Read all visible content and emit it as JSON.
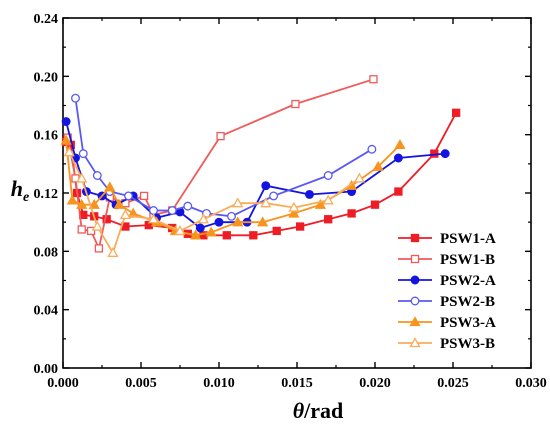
{
  "chart_data": {
    "type": "line",
    "title": "",
    "xlabel": {
      "symbol": "θ",
      "unit": "/rad"
    },
    "ylabel": {
      "symbol": "h",
      "subscript": "e"
    },
    "xlim": [
      0,
      0.03
    ],
    "ylim": [
      0,
      0.24
    ],
    "xticks": [
      "0.000",
      "0.005",
      "0.010",
      "0.015",
      "0.020",
      "0.025",
      "0.030"
    ],
    "yticks": [
      "0.00",
      "0.04",
      "0.08",
      "0.12",
      "0.16",
      "0.20",
      "0.24"
    ],
    "grid": false,
    "legend_position": "lower-right",
    "series": [
      {
        "name": "PSW1-A",
        "color": "#ee1c25",
        "marker": "square",
        "filled": true,
        "points": [
          [
            0.0002,
            0.155
          ],
          [
            0.0005,
            0.153
          ],
          [
            0.0009,
            0.12
          ],
          [
            0.0013,
            0.105
          ],
          [
            0.002,
            0.104
          ],
          [
            0.0028,
            0.102
          ],
          [
            0.004,
            0.097
          ],
          [
            0.0055,
            0.098
          ],
          [
            0.007,
            0.096
          ],
          [
            0.008,
            0.092
          ],
          [
            0.009,
            0.091
          ],
          [
            0.0105,
            0.091
          ],
          [
            0.0122,
            0.091
          ],
          [
            0.0137,
            0.094
          ],
          [
            0.0152,
            0.097
          ],
          [
            0.017,
            0.102
          ],
          [
            0.0185,
            0.106
          ],
          [
            0.02,
            0.112
          ],
          [
            0.0215,
            0.121
          ],
          [
            0.0238,
            0.147
          ],
          [
            0.0252,
            0.175
          ]
        ]
      },
      {
        "name": "PSW1-B",
        "color": "#f05a5a",
        "marker": "square",
        "filled": false,
        "points": [
          [
            0.0003,
            0.158
          ],
          [
            0.0008,
            0.13
          ],
          [
            0.0012,
            0.095
          ],
          [
            0.0018,
            0.094
          ],
          [
            0.0023,
            0.082
          ],
          [
            0.003,
            0.117
          ],
          [
            0.004,
            0.113
          ],
          [
            0.0052,
            0.118
          ],
          [
            0.0058,
            0.105
          ],
          [
            0.007,
            0.108
          ],
          [
            0.0101,
            0.159
          ],
          [
            0.0149,
            0.181
          ],
          [
            0.0199,
            0.198
          ]
        ]
      },
      {
        "name": "PSW2-A",
        "color": "#1414e0",
        "marker": "circle",
        "filled": true,
        "points": [
          [
            0.0002,
            0.169
          ],
          [
            0.0008,
            0.144
          ],
          [
            0.0015,
            0.121
          ],
          [
            0.0025,
            0.118
          ],
          [
            0.0034,
            0.112
          ],
          [
            0.0045,
            0.118
          ],
          [
            0.006,
            0.103
          ],
          [
            0.0075,
            0.107
          ],
          [
            0.0088,
            0.096
          ],
          [
            0.01,
            0.1
          ],
          [
            0.0118,
            0.1
          ],
          [
            0.013,
            0.125
          ],
          [
            0.0158,
            0.119
          ],
          [
            0.0185,
            0.121
          ],
          [
            0.0215,
            0.144
          ],
          [
            0.0245,
            0.147
          ]
        ]
      },
      {
        "name": "PSW2-B",
        "color": "#5a5af0",
        "marker": "circle",
        "filled": false,
        "points": [
          [
            0.0008,
            0.185
          ],
          [
            0.0013,
            0.147
          ],
          [
            0.0022,
            0.132
          ],
          [
            0.003,
            0.121
          ],
          [
            0.0042,
            0.118
          ],
          [
            0.0058,
            0.108
          ],
          [
            0.007,
            0.108
          ],
          [
            0.008,
            0.111
          ],
          [
            0.0092,
            0.106
          ],
          [
            0.0108,
            0.104
          ],
          [
            0.0135,
            0.118
          ],
          [
            0.017,
            0.132
          ],
          [
            0.0198,
            0.15
          ]
        ]
      },
      {
        "name": "PSW3-A",
        "color": "#f7941d",
        "marker": "triangle",
        "filled": true,
        "points": [
          [
            0.0002,
            0.156
          ],
          [
            0.0006,
            0.115
          ],
          [
            0.0012,
            0.112
          ],
          [
            0.002,
            0.112
          ],
          [
            0.003,
            0.124
          ],
          [
            0.0036,
            0.112
          ],
          [
            0.0045,
            0.106
          ],
          [
            0.006,
            0.1
          ],
          [
            0.0072,
            0.094
          ],
          [
            0.0085,
            0.091
          ],
          [
            0.0095,
            0.093
          ],
          [
            0.0112,
            0.1
          ],
          [
            0.0128,
            0.1
          ],
          [
            0.0148,
            0.106
          ],
          [
            0.0165,
            0.112
          ],
          [
            0.0185,
            0.125
          ],
          [
            0.0202,
            0.138
          ],
          [
            0.0216,
            0.153
          ]
        ]
      },
      {
        "name": "PSW3-B",
        "color": "#f9ad5a",
        "marker": "triangle",
        "filled": false,
        "points": [
          [
            0.0004,
            0.148
          ],
          [
            0.0012,
            0.13
          ],
          [
            0.0022,
            0.097
          ],
          [
            0.0032,
            0.079
          ],
          [
            0.004,
            0.105
          ],
          [
            0.0058,
            0.102
          ],
          [
            0.0075,
            0.094
          ],
          [
            0.009,
            0.102
          ],
          [
            0.0112,
            0.113
          ],
          [
            0.013,
            0.113
          ],
          [
            0.0148,
            0.11
          ],
          [
            0.017,
            0.115
          ],
          [
            0.019,
            0.13
          ]
        ]
      }
    ]
  }
}
